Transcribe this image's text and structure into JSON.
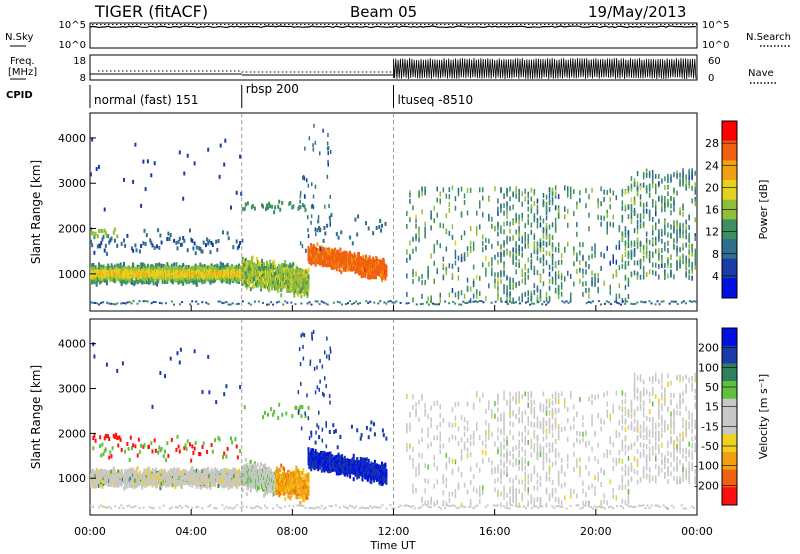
{
  "header": {
    "title": "TIGER (fitACF)",
    "beam": "Beam 05",
    "date": "19/May/2013"
  },
  "side_labels": {
    "nsky": "N.Sky",
    "nsearch": "N.Search",
    "freq": "Freq.",
    "freq_unit": "[MHz]",
    "nave": "Nave",
    "cpid": "CPID"
  },
  "noise_panel": {
    "left_ticks": [
      "10^5",
      "10^0"
    ],
    "right_ticks": [
      "10^5",
      "10^0"
    ]
  },
  "freq_panel": {
    "left_ticks": [
      "18",
      "8"
    ],
    "right_ticks": [
      "60",
      "0"
    ]
  },
  "cpid_segments": [
    {
      "label": "normal (fast) 151",
      "start_hour": 0,
      "end_hour": 6
    },
    {
      "label": "rbsp 200",
      "start_hour": 6,
      "end_hour": 12
    },
    {
      "label": "ltuseq -8510",
      "start_hour": 12,
      "end_hour": 24
    }
  ],
  "time_axis": {
    "label": "Time UT",
    "ticks": [
      "00:00",
      "04:00",
      "08:00",
      "12:00",
      "16:00",
      "20:00",
      "00:00"
    ],
    "tick_hours": [
      0,
      4,
      8,
      12,
      16,
      20,
      24
    ],
    "range_hours": [
      0,
      24
    ]
  },
  "chart_data": [
    {
      "type": "heatmap",
      "quantity": "power",
      "ylabel": "Slant Range [km]",
      "ylim": [
        180,
        4550
      ],
      "y_ticks": [
        1000,
        2000,
        3000,
        4000
      ],
      "x_range_hours": [
        0,
        24
      ],
      "colorbar": {
        "label": "Power [dB]",
        "ticks": [
          "4",
          "8",
          "12",
          "16",
          "20",
          "24",
          "28"
        ],
        "tick_values": [
          4,
          8,
          12,
          16,
          20,
          24,
          28
        ],
        "range": [
          0,
          32
        ],
        "colors": [
          "#0010e0",
          "#1a3ba8",
          "#2f6e8c",
          "#3c8f5e",
          "#8fbf3a",
          "#e8d020",
          "#f0a010",
          "#f06010",
          "#ff0000"
        ]
      }
    },
    {
      "type": "heatmap",
      "quantity": "velocity",
      "ylabel": "Slant Range [km]",
      "ylim": [
        180,
        4550
      ],
      "y_ticks": [
        1000,
        2000,
        3000,
        4000
      ],
      "x_range_hours": [
        0,
        24
      ],
      "colorbar": {
        "label": "Velocity [m s⁻¹]",
        "ticks": [
          "200",
          "100",
          "50",
          "15",
          "-15",
          "-50",
          "-100",
          "-200"
        ],
        "tick_values": [
          200,
          100,
          50,
          15,
          -15,
          -50,
          -100,
          -200
        ],
        "range": [
          -250,
          250
        ],
        "colors": [
          "#0010e0",
          "#1a3ba8",
          "#2f7e5e",
          "#60c040",
          "#c8c8c8",
          "#c8c8c8",
          "#f0d020",
          "#f0a010",
          "#f06010",
          "#ff1010"
        ]
      }
    }
  ]
}
